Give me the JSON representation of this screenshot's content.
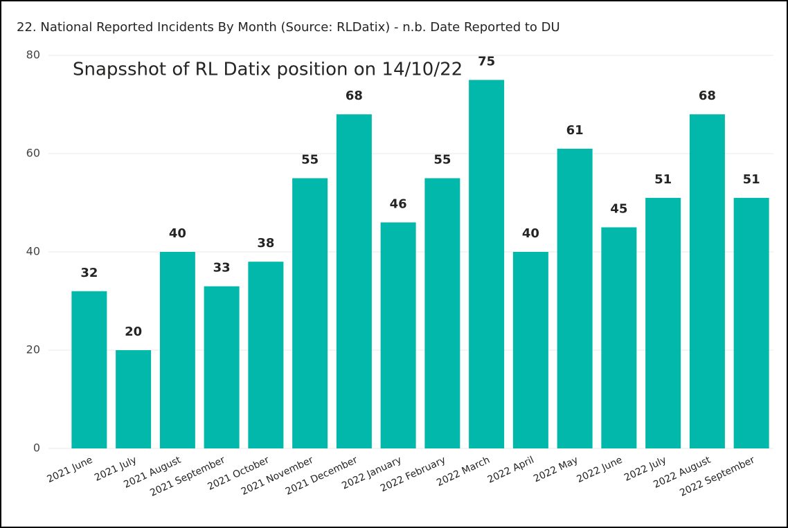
{
  "chart_data": {
    "type": "bar",
    "title": "22. National Reported Incidents By Month (Source: RLDatix) - n.b. Date Reported to DU",
    "annotation": "Snapsshot of RL Datix position on 14/10/22",
    "categories": [
      "2021 June",
      "2021 July",
      "2021 August",
      "2021 September",
      "2021 October",
      "2021 November",
      "2021 December",
      "2022 January",
      "2022 February",
      "2022 March",
      "2022 April",
      "2022 May",
      "2022 June",
      "2022 July",
      "2022 August",
      "2022 September"
    ],
    "values": [
      32,
      20,
      40,
      33,
      38,
      55,
      68,
      46,
      55,
      75,
      40,
      61,
      45,
      51,
      68,
      51
    ],
    "color": "#01b8aa",
    "ylim": [
      0,
      80
    ],
    "yticks": [
      0,
      20,
      40,
      60,
      80
    ],
    "grid": true
  }
}
